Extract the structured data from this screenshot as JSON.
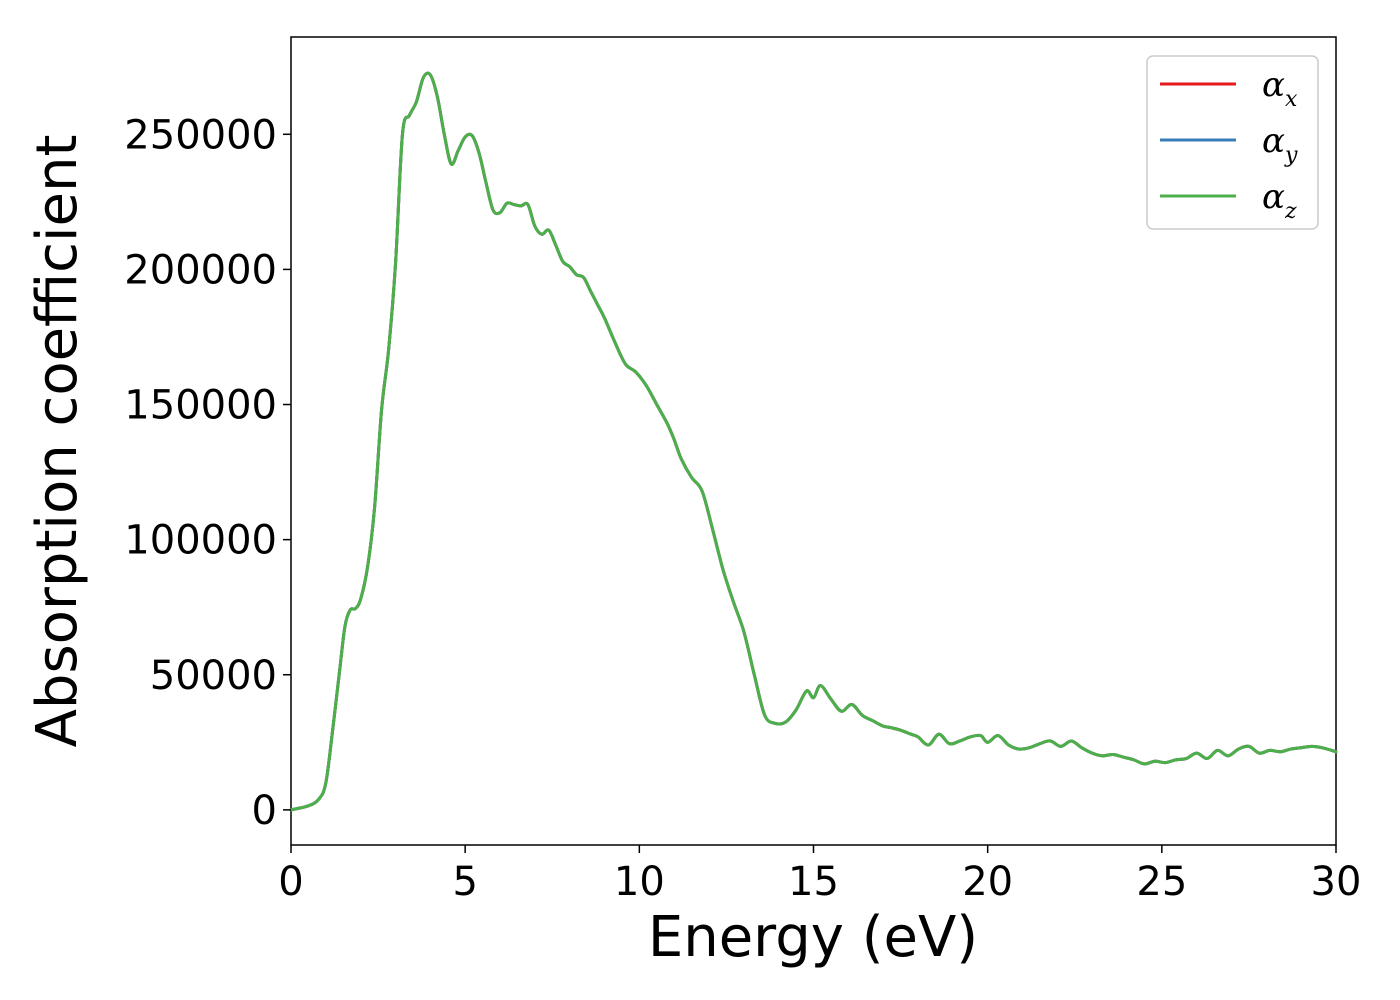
{
  "chart_data": {
    "type": "line",
    "title": "",
    "xlabel": "Energy (eV)",
    "ylabel": "Absorption coefficient",
    "xlim": [
      0,
      30
    ],
    "ylim": [
      -13000,
      286000
    ],
    "xticks": [
      0,
      5,
      10,
      15,
      20,
      25,
      30
    ],
    "xtick_labels": [
      "0",
      "5",
      "10",
      "15",
      "20",
      "25",
      "30"
    ],
    "yticks": [
      0,
      50000,
      100000,
      150000,
      200000,
      250000
    ],
    "ytick_labels": [
      "0",
      "50000",
      "100000",
      "150000",
      "200000",
      "250000"
    ],
    "grid": false,
    "legend_position": "top-right",
    "series": [
      {
        "name": "α",
        "subscript": "x",
        "color": "#e41a1c",
        "values_ref": "shared"
      },
      {
        "name": "α",
        "subscript": "y",
        "color": "#377eb8",
        "values_ref": "shared"
      },
      {
        "name": "α",
        "subscript": "z",
        "color": "#4daf4a",
        "values_ref": "shared"
      }
    ],
    "x": [
      0,
      0.5,
      0.8,
      1.0,
      1.2,
      1.4,
      1.55,
      1.7,
      1.85,
      2.0,
      2.2,
      2.4,
      2.6,
      2.8,
      3.0,
      3.2,
      3.4,
      3.6,
      3.8,
      4.0,
      4.2,
      4.4,
      4.6,
      4.8,
      5.0,
      5.2,
      5.4,
      5.6,
      5.8,
      6.0,
      6.2,
      6.4,
      6.6,
      6.8,
      7.0,
      7.2,
      7.4,
      7.6,
      7.8,
      8.0,
      8.2,
      8.4,
      8.6,
      8.8,
      9.0,
      9.3,
      9.6,
      9.9,
      10.2,
      10.5,
      10.8,
      11.0,
      11.2,
      11.5,
      11.8,
      12.1,
      12.4,
      12.7,
      13.0,
      13.3,
      13.6,
      13.9,
      14.2,
      14.5,
      14.8,
      15.0,
      15.2,
      15.5,
      15.8,
      16.1,
      16.4,
      16.7,
      17.0,
      17.2,
      17.5,
      17.8,
      18.0,
      18.3,
      18.6,
      18.9,
      19.2,
      19.5,
      19.8,
      20.0,
      20.3,
      20.6,
      20.9,
      21.2,
      21.5,
      21.8,
      22.1,
      22.4,
      22.7,
      23.0,
      23.3,
      23.6,
      23.9,
      24.2,
      24.5,
      24.8,
      25.1,
      25.4,
      25.7,
      26.0,
      26.3,
      26.6,
      26.9,
      27.2,
      27.5,
      27.8,
      28.1,
      28.4,
      28.7,
      29.0,
      29.3,
      29.6,
      30.0
    ],
    "y": [
      0,
      1500,
      4000,
      10000,
      30000,
      52000,
      68000,
      74000,
      74500,
      78000,
      90000,
      112000,
      148000,
      170000,
      202000,
      250000,
      257000,
      262000,
      271000,
      272000,
      264000,
      250000,
      239000,
      244000,
      249000,
      249500,
      243000,
      232000,
      222000,
      221000,
      224500,
      224000,
      223500,
      224000,
      216000,
      213000,
      214500,
      209000,
      203000,
      201000,
      198000,
      197000,
      192000,
      187000,
      182000,
      173000,
      165000,
      162000,
      157000,
      150000,
      143000,
      137000,
      130000,
      123000,
      118000,
      104000,
      89000,
      77000,
      66000,
      50000,
      35000,
      32000,
      32500,
      37000,
      44000,
      41500,
      46000,
      41000,
      36500,
      39000,
      35000,
      33000,
      31000,
      30500,
      29500,
      28000,
      27000,
      24000,
      28000,
      24500,
      25500,
      27000,
      27500,
      25000,
      27500,
      24000,
      22500,
      23000,
      24500,
      25500,
      23500,
      25500,
      23000,
      21000,
      20000,
      20500,
      19500,
      18500,
      17000,
      18000,
      17500,
      18500,
      19000,
      21000,
      19000,
      22000,
      20000,
      22500,
      23500,
      21000,
      22000,
      21500,
      22500,
      23000,
      23500,
      23000,
      21500
    ]
  }
}
